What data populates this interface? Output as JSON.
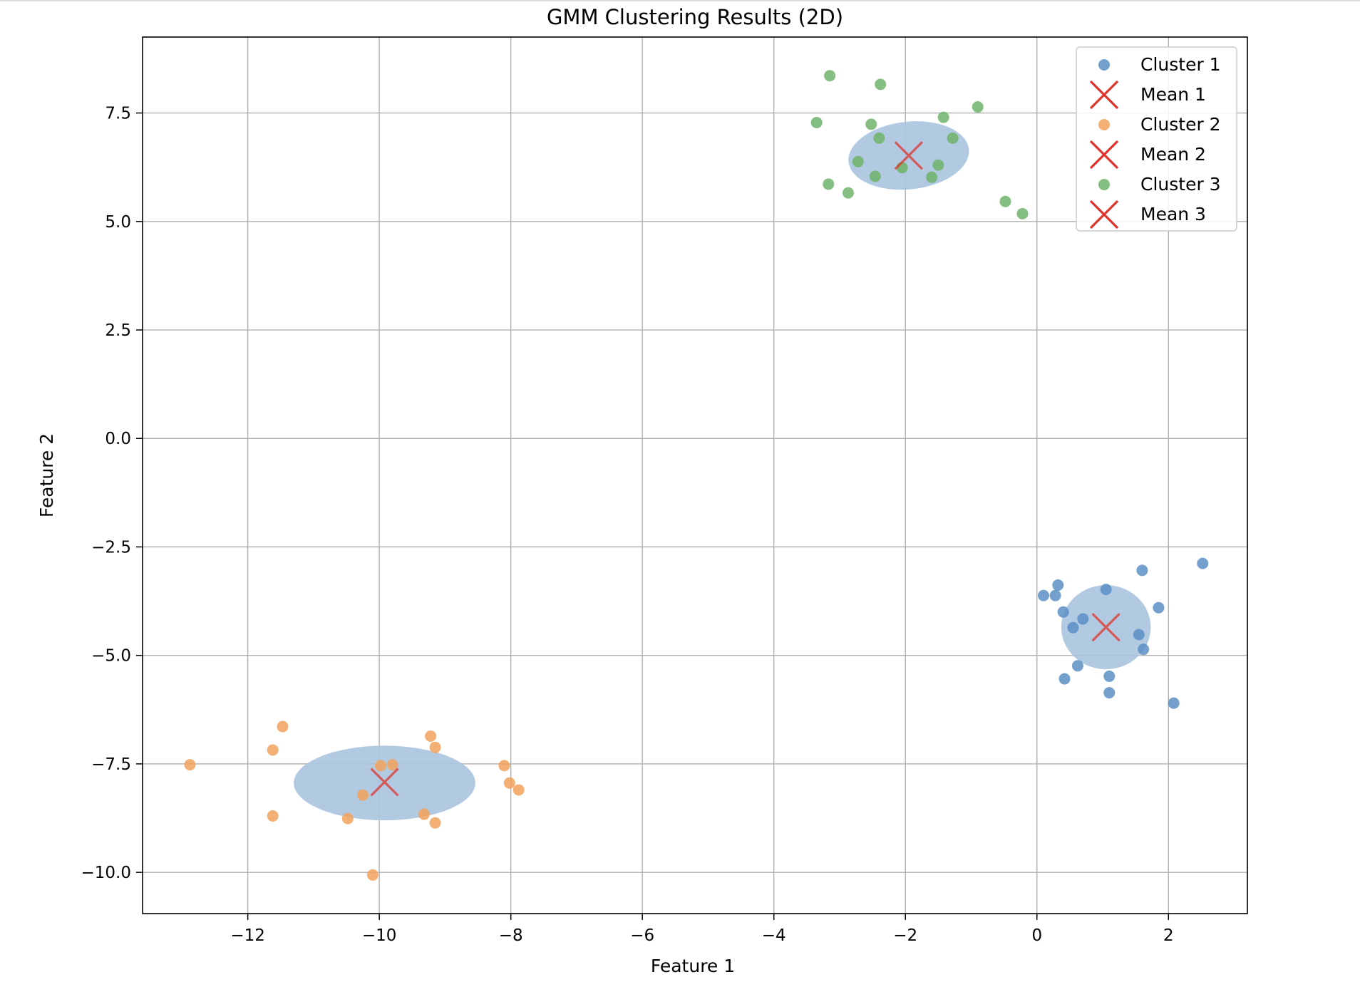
{
  "chart_data": {
    "type": "scatter",
    "title": "GMM Clustering Results (2D)",
    "xlabel": "Feature 1",
    "ylabel": "Feature 2",
    "xlim": [
      -13.6,
      3.2
    ],
    "ylim": [
      -10.95,
      9.25
    ],
    "xticks": [
      -12,
      -10,
      -8,
      -6,
      -4,
      -2,
      0,
      2
    ],
    "xtick_labels": [
      "−12",
      "−10",
      "−8",
      "−6",
      "−4",
      "−2",
      "0",
      "2"
    ],
    "yticks": [
      -10,
      -7.5,
      -5,
      -2.5,
      0,
      2.5,
      5,
      7.5
    ],
    "ytick_labels": [
      "−10.0",
      "−7.5",
      "−5.0",
      "−2.5",
      "0.0",
      "2.5",
      "5.0",
      "7.5"
    ],
    "grid": true,
    "legend_position": "top-right",
    "colors": {
      "cluster1": "#5b8fc4",
      "cluster2": "#f2a25c",
      "cluster3": "#6fb36a",
      "mean": "#e0322a",
      "ellipse": "#aac4de",
      "grid": "#b0b0b0"
    },
    "series": [
      {
        "name": "Cluster 1",
        "kind": "points",
        "color": "#5b8fc4",
        "points": [
          [
            0.1,
            -3.62
          ],
          [
            0.28,
            -3.62
          ],
          [
            0.32,
            -3.38
          ],
          [
            0.4,
            -4.0
          ],
          [
            0.55,
            -4.36
          ],
          [
            0.7,
            -4.16
          ],
          [
            0.62,
            -5.24
          ],
          [
            0.42,
            -5.54
          ],
          [
            1.05,
            -3.48
          ],
          [
            1.1,
            -5.48
          ],
          [
            1.1,
            -5.86
          ],
          [
            1.55,
            -4.52
          ],
          [
            1.62,
            -4.86
          ],
          [
            1.6,
            -3.04
          ],
          [
            1.85,
            -3.9
          ],
          [
            2.08,
            -6.1
          ],
          [
            2.52,
            -2.88
          ]
        ]
      },
      {
        "name": "Mean 1",
        "kind": "mean",
        "x": 1.05,
        "y": -4.35
      },
      {
        "name": "Cluster 2",
        "kind": "points",
        "color": "#f2a25c",
        "points": [
          [
            -12.88,
            -7.52
          ],
          [
            -11.62,
            -7.18
          ],
          [
            -11.47,
            -6.64
          ],
          [
            -11.62,
            -8.7
          ],
          [
            -10.48,
            -8.76
          ],
          [
            -10.25,
            -8.22
          ],
          [
            -10.1,
            -10.06
          ],
          [
            -9.98,
            -7.54
          ],
          [
            -9.8,
            -7.52
          ],
          [
            -9.32,
            -8.66
          ],
          [
            -9.22,
            -6.86
          ],
          [
            -9.15,
            -7.12
          ],
          [
            -9.15,
            -8.86
          ],
          [
            -8.1,
            -7.54
          ],
          [
            -8.02,
            -7.94
          ],
          [
            -7.88,
            -8.1
          ]
        ]
      },
      {
        "name": "Mean 2",
        "kind": "mean",
        "x": -9.92,
        "y": -7.92
      },
      {
        "name": "Cluster 3",
        "kind": "points",
        "color": "#6fb36a",
        "points": [
          [
            -3.35,
            7.28
          ],
          [
            -3.15,
            8.36
          ],
          [
            -3.17,
            5.86
          ],
          [
            -2.87,
            5.66
          ],
          [
            -2.72,
            6.38
          ],
          [
            -2.52,
            7.24
          ],
          [
            -2.46,
            6.04
          ],
          [
            -2.4,
            6.92
          ],
          [
            -2.38,
            8.16
          ],
          [
            -2.05,
            6.24
          ],
          [
            -1.6,
            6.02
          ],
          [
            -1.5,
            6.3
          ],
          [
            -1.42,
            7.4
          ],
          [
            -1.28,
            6.92
          ],
          [
            -0.9,
            7.64
          ],
          [
            -0.48,
            5.46
          ],
          [
            -0.22,
            5.18
          ]
        ]
      },
      {
        "name": "Mean 3",
        "kind": "mean",
        "x": -1.95,
        "y": 6.52
      }
    ],
    "covariance_ellipses": [
      {
        "cx": 1.05,
        "cy": -4.35,
        "rx": 0.68,
        "ry": 0.97,
        "angle": 0
      },
      {
        "cx": -9.92,
        "cy": -7.94,
        "rx": 1.38,
        "ry": 0.86,
        "angle": 0
      },
      {
        "cx": -1.95,
        "cy": 6.52,
        "rx": 0.92,
        "ry": 0.78,
        "angle": -6
      }
    ]
  }
}
